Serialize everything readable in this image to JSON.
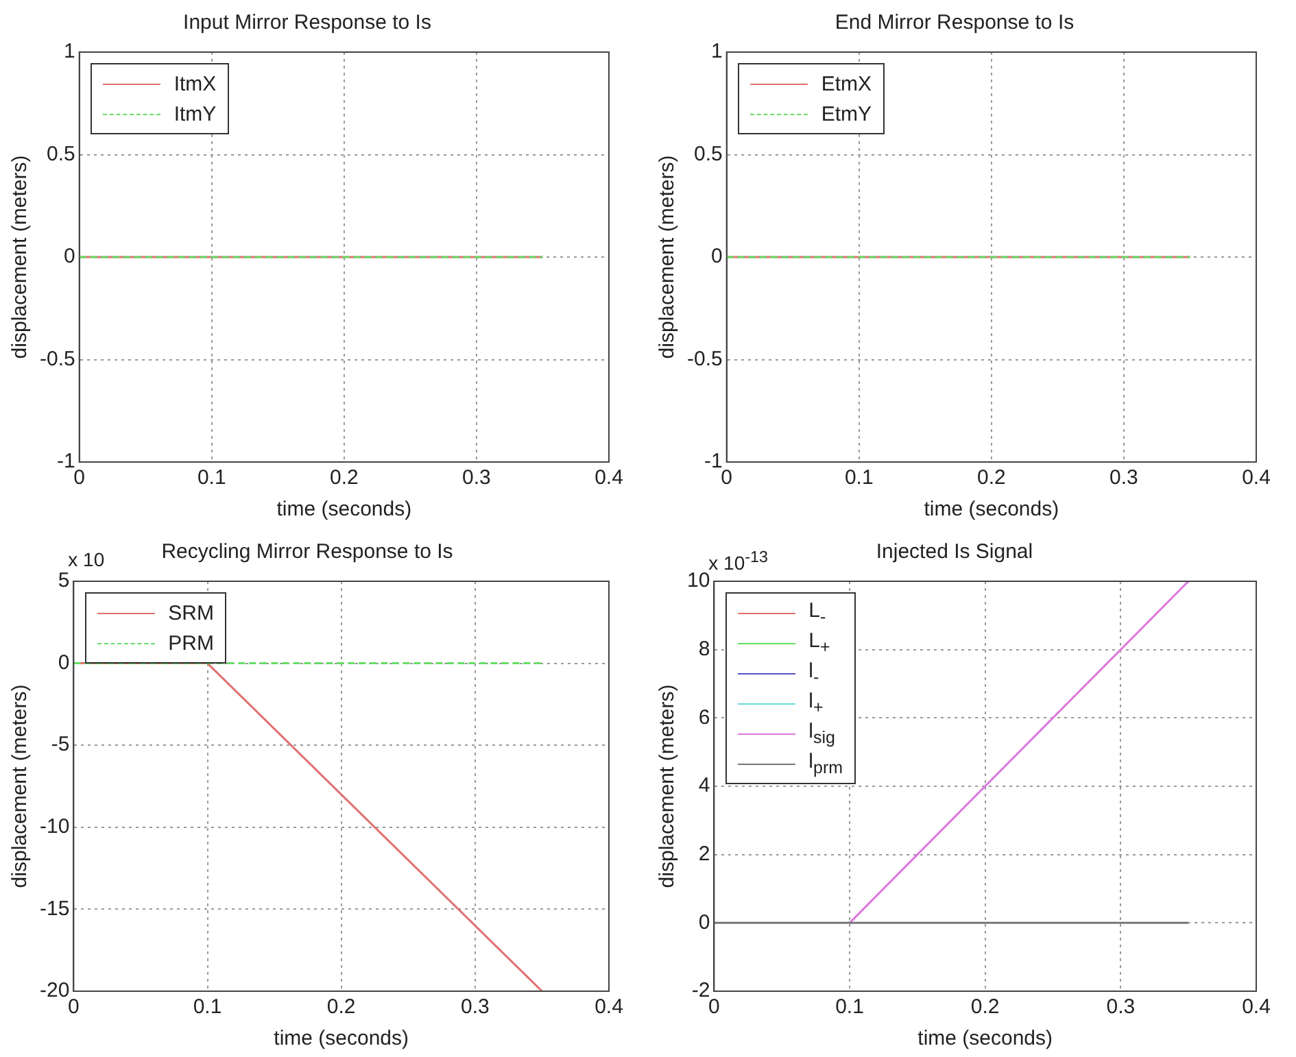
{
  "chart_data": [
    {
      "type": "line",
      "title": "Input Mirror Response to Is",
      "xlabel": "time (seconds)",
      "ylabel": "displacement (meters)",
      "xlim": [
        0,
        0.4
      ],
      "xticks": [
        0,
        0.1,
        0.2,
        0.3,
        0.4
      ],
      "ylim": [
        -1,
        1
      ],
      "yticks": [
        -1,
        -0.5,
        0,
        0.5,
        1
      ],
      "grid": true,
      "legend": "top left",
      "marker": "none",
      "series": [
        {
          "name": "ItmX",
          "color": "#e07070",
          "x": [
            0,
            0.35
          ],
          "values": [
            0,
            0
          ],
          "line_style": "solid"
        },
        {
          "name": "ItmY",
          "color": "#66dd66",
          "x": [
            0,
            0.35
          ],
          "values": [
            0,
            0
          ],
          "line_style": "dashed"
        }
      ]
    },
    {
      "type": "line",
      "title": "End Mirror Response to Is",
      "xlabel": "time (seconds)",
      "ylabel": "displacement (meters)",
      "xlim": [
        0,
        0.4
      ],
      "xticks": [
        0,
        0.1,
        0.2,
        0.3,
        0.4
      ],
      "ylim": [
        -1,
        1
      ],
      "yticks": [
        -1,
        -0.5,
        0,
        0.5,
        1
      ],
      "grid": true,
      "legend": "top left",
      "marker": "none",
      "series": [
        {
          "name": "EtmX",
          "color": "#e07070",
          "x": [
            0,
            0.35
          ],
          "values": [
            0,
            0
          ],
          "line_style": "solid"
        },
        {
          "name": "EtmY",
          "color": "#66dd66",
          "x": [
            0,
            0.35
          ],
          "values": [
            0,
            0
          ],
          "line_style": "dashed"
        }
      ]
    },
    {
      "type": "line",
      "title": "Recycling Mirror Response to Is",
      "xlabel": "time (seconds)",
      "ylabel": "displacement (meters)",
      "annotations": [
        "x 10"
      ],
      "xlim": [
        0,
        0.4
      ],
      "xticks": [
        0,
        0.1,
        0.2,
        0.3,
        0.4
      ],
      "ylim": [
        -20,
        5
      ],
      "yticks": [
        -20,
        -15,
        -10,
        -5,
        0,
        5
      ],
      "grid": true,
      "legend": "top left",
      "marker": "none",
      "series": [
        {
          "name": "SRM",
          "color": "#e07070",
          "x": [
            0,
            0.1,
            0.35
          ],
          "values": [
            0,
            0,
            -20
          ],
          "line_style": "solid"
        },
        {
          "name": "PRM",
          "color": "#66dd66",
          "x": [
            0,
            0.35
          ],
          "values": [
            0,
            0
          ],
          "line_style": "dashed"
        }
      ]
    },
    {
      "type": "line",
      "title": "Injected Is Signal",
      "xlabel": "time (seconds)",
      "ylabel": "displacement (meters)",
      "annotations": [
        "x 10$^{-13}$"
      ],
      "xlim": [
        0,
        0.4
      ],
      "xticks": [
        0,
        0.1,
        0.2,
        0.3,
        0.4
      ],
      "ylim": [
        -2,
        10
      ],
      "yticks": [
        -2,
        0,
        2,
        4,
        6,
        8,
        10
      ],
      "grid": true,
      "legend": "top left",
      "marker": "none",
      "series": [
        {
          "name": "L$_{-}$",
          "color": "#e07070",
          "line_style": "solid"
        },
        {
          "name": "L$_{+}$",
          "color": "#66dd66",
          "line_style": "solid"
        },
        {
          "name": "l$_{-}$",
          "color": "#5555cc",
          "line_style": "solid"
        },
        {
          "name": "l$_{+}$",
          "color": "#66dddd",
          "line_style": "solid"
        },
        {
          "name": "l$_{sig}$",
          "color": "#dd77dd",
          "x": [
            0.1,
            0.35
          ],
          "values": [
            0,
            10
          ],
          "line_style": "solid"
        },
        {
          "name": "l$_{prm}$",
          "color": "#777777",
          "x": [
            0,
            0.35
          ],
          "values": [
            0,
            0
          ],
          "line_style": "solid"
        }
      ]
    }
  ]
}
